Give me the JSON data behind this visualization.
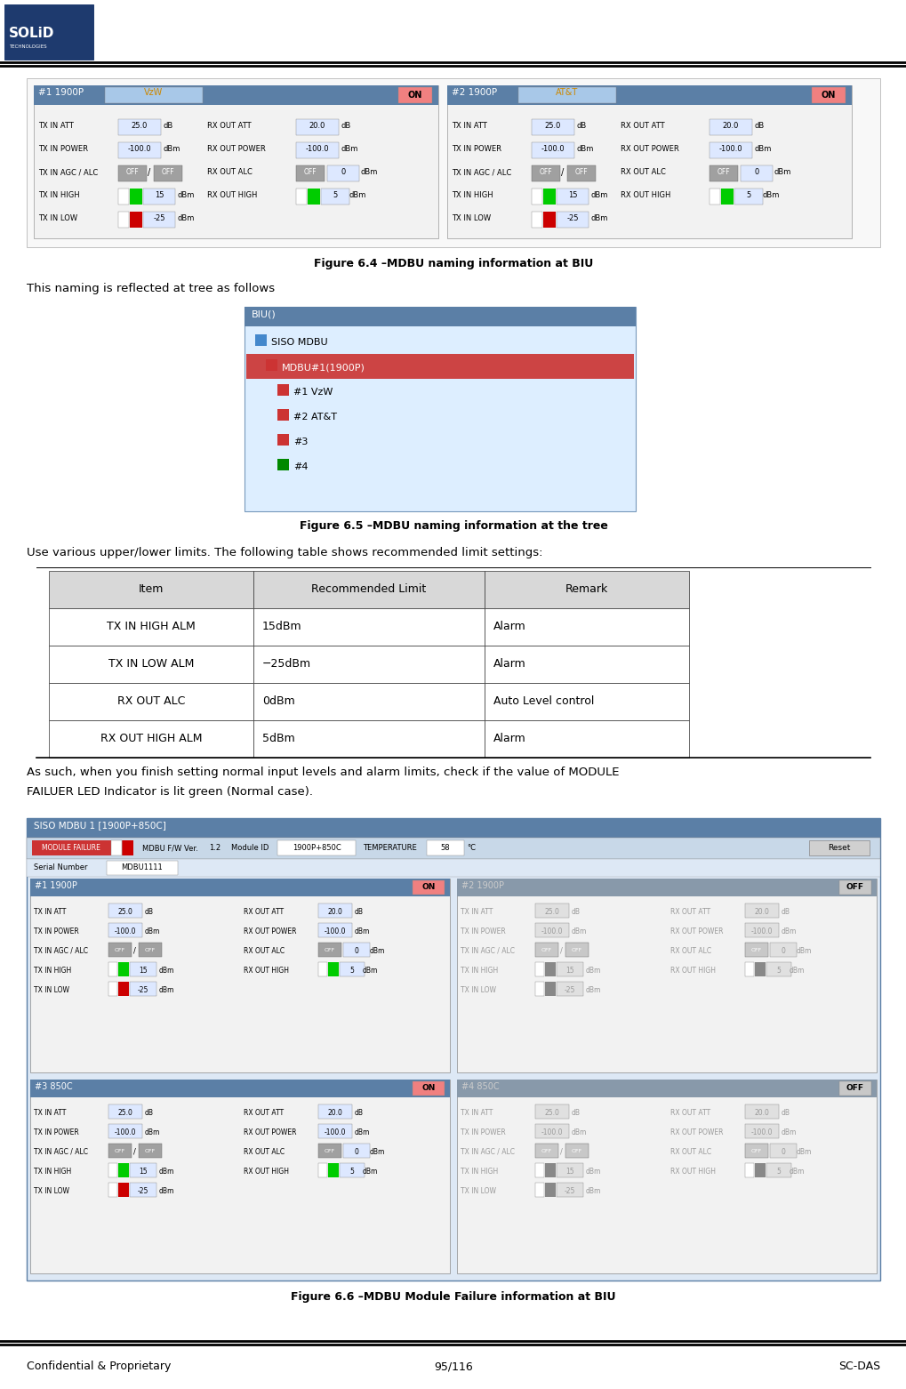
{
  "bg_color": "#ffffff",
  "header_blue": "#1e3a6e",
  "panel_header_blue": "#5b7fa6",
  "panel_header_blue2": "#7090b0",
  "on_button_color": "#f08080",
  "green_indicator": "#00cc00",
  "red_indicator": "#cc0000",
  "input_bg": "#dde8ff",
  "gray_button": "#888888",
  "tree_bg": "#ddeeff",
  "tree_selected": "#cc4444",
  "table_header_bg": "#d8d8d8",
  "table_row_bg": "#ffffff",
  "fig1_caption": "Figure 6.4 –MDBU naming information at BIU",
  "fig2_caption": "Figure 6.5 –MDBU naming information at the tree",
  "fig3_caption": "Figure 6.6 –MDBU Module Failure information at BIU",
  "text_above_fig2": "This naming is reflected at tree as follows",
  "text_above_table": "Use various upper/lower limits. The following table shows recommended limit settings:",
  "text_below_table_line1": "As such, when you finish setting normal input levels and alarm limits, check if the value of MODULE",
  "text_below_table_line2": "FAILUER LED Indicator is lit green (Normal case).",
  "table_headers": [
    "Item",
    "Recommended Limit",
    "Remark"
  ],
  "table_rows": [
    [
      "TX IN HIGH ALM",
      "15dBm",
      "Alarm"
    ],
    [
      "TX IN LOW ALM",
      "−25dBm",
      "Alarm"
    ],
    [
      "RX OUT ALC",
      "0dBm",
      "Auto Level control"
    ],
    [
      "RX OUT HIGH ALM",
      "5dBm",
      "Alarm"
    ]
  ],
  "footer_left": "Confidential & Proprietary",
  "footer_center": "95/116",
  "footer_right": "SC-DAS"
}
